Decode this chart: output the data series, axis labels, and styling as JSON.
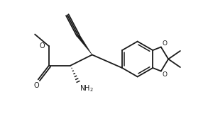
{
  "background": "#ffffff",
  "line_color": "#1a1a1a",
  "line_width": 1.3,
  "figsize": [
    2.93,
    1.64
  ],
  "dpi": 100,
  "xlim": [
    0.0,
    9.5
  ],
  "ylim": [
    0.5,
    5.8
  ]
}
